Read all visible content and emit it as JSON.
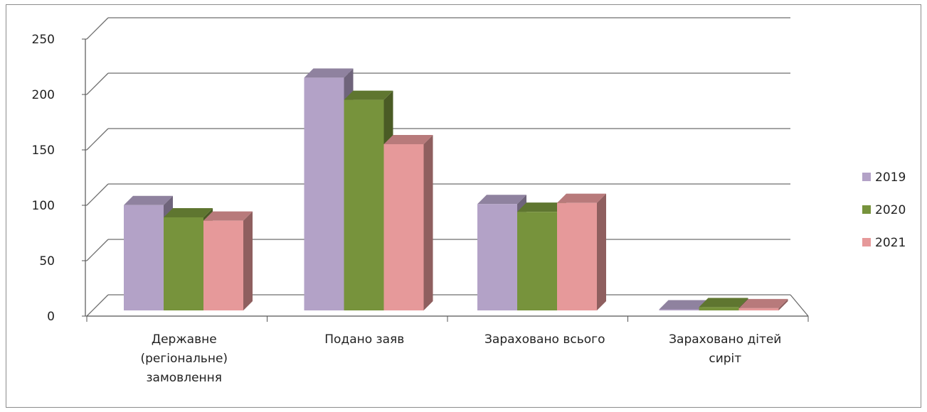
{
  "chart_data": {
    "type": "bar",
    "style": "3d-clustered-column",
    "categories": [
      [
        "Державне",
        "(регіональне)",
        "замовлення"
      ],
      [
        "Подано заяв"
      ],
      [
        "Зараховано всього"
      ],
      [
        "Зараховано дітей",
        "сиріт"
      ]
    ],
    "series": [
      {
        "name": "2019",
        "values": [
          95,
          210,
          96,
          1
        ],
        "color": "#b3a2c7"
      },
      {
        "name": "2020",
        "values": [
          84,
          190,
          89,
          3
        ],
        "color": "#77933c"
      },
      {
        "name": "2021",
        "values": [
          81,
          150,
          97,
          2
        ],
        "color": "#e6999a"
      }
    ],
    "ylim": [
      0,
      250
    ],
    "yticks": [
      "0",
      "50",
      "100",
      "150",
      "200",
      "250"
    ],
    "grid": true,
    "legend_position": "right"
  }
}
